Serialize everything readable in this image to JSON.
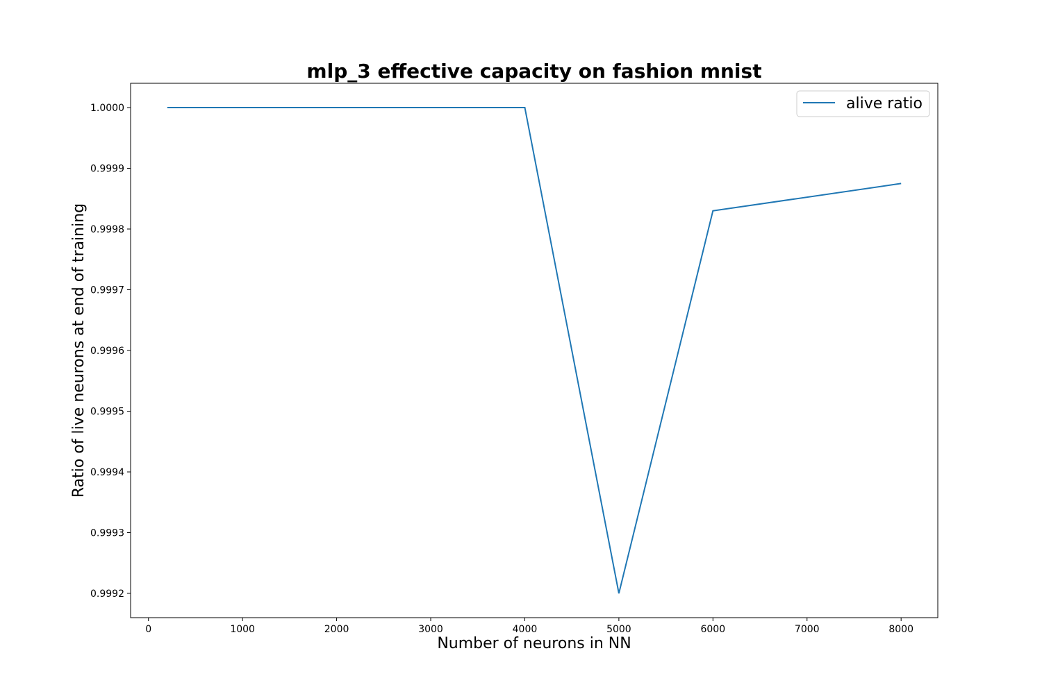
{
  "chart_data": {
    "type": "line",
    "title": "mlp_3 effective capacity on fashion mnist",
    "xlabel": "Number of neurons in NN",
    "ylabel": "Ratio of live neurons at end of training",
    "x": [
      200,
      4000,
      5000,
      6000,
      8000
    ],
    "series": [
      {
        "name": "alive ratio",
        "color": "#1f77b4",
        "values": [
          1.0,
          1.0,
          0.9992,
          0.99983,
          0.999875
        ]
      }
    ],
    "xlim": [
      -190,
      8390
    ],
    "ylim": [
      0.99916,
      1.00004
    ],
    "xticks": [
      0,
      1000,
      2000,
      3000,
      4000,
      5000,
      6000,
      7000,
      8000
    ],
    "xtick_labels": [
      "0",
      "1000",
      "2000",
      "3000",
      "4000",
      "5000",
      "6000",
      "7000",
      "8000"
    ],
    "yticks": [
      0.9992,
      0.9993,
      0.9994,
      0.9995,
      0.9996,
      0.9997,
      0.9998,
      0.9999,
      1.0
    ],
    "ytick_labels": [
      "0.9992",
      "0.9993",
      "0.9994",
      "0.9995",
      "0.9996",
      "0.9997",
      "0.9998",
      "0.9999",
      "1.0000"
    ],
    "grid": false,
    "legend_position": "top-right"
  }
}
